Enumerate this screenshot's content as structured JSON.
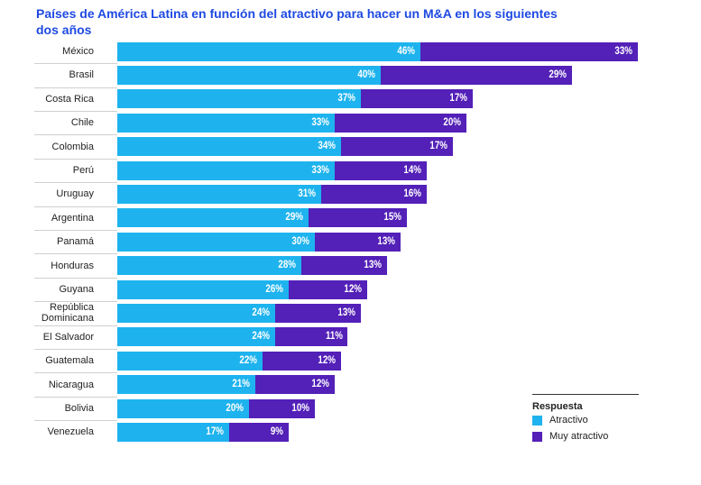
{
  "chart_data": {
    "type": "stacked-bar-horizontal",
    "title": "Países de América Latina en función del atractivo para hacer un M&A en los siguientes dos años",
    "categories": [
      "México",
      "Brasil",
      "Costa Rica",
      "Chile",
      "Colombia",
      "Perú",
      "Uruguay",
      "Argentina",
      "Panamá",
      "Honduras",
      "Guyana",
      "República Dominicana",
      "El Salvador",
      "Guatemala",
      "Nicaragua",
      "Bolivia",
      "Venezuela"
    ],
    "series": [
      {
        "name": "Atractivo",
        "color": "#1eb3ee",
        "values": [
          46,
          40,
          37,
          33,
          34,
          33,
          31,
          29,
          30,
          28,
          26,
          24,
          24,
          22,
          21,
          20,
          17
        ],
        "value_labels": [
          "46%",
          "40%",
          "37%",
          "33%",
          "34%",
          "33%",
          "31%",
          "29%",
          "30%",
          "28%",
          "26%",
          "24%",
          "24%",
          "22%",
          "21%",
          "20%",
          "17%"
        ]
      },
      {
        "name": "Muy atractivo",
        "color": "#5320b8",
        "values": [
          33,
          29,
          17,
          20,
          17,
          14,
          16,
          15,
          13,
          13,
          12,
          13,
          11,
          12,
          12,
          10,
          9
        ],
        "value_labels": [
          "33%",
          "29%",
          "17%",
          "20%",
          "17%",
          "14%",
          "16%",
          "15%",
          "13%",
          "13%",
          "12%",
          "13%",
          "11%",
          "12%",
          "12%",
          "10%",
          "9%"
        ]
      }
    ],
    "legend_title": "Respuesta"
  }
}
